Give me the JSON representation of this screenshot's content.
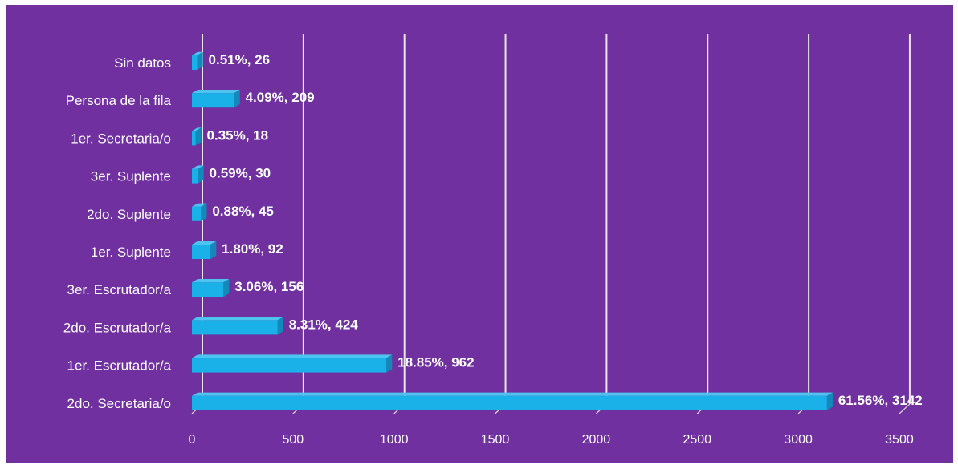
{
  "chart_data": {
    "type": "bar",
    "orientation": "horizontal",
    "style": "3d-clustered-bar",
    "title": "",
    "xlabel": "",
    "ylabel": "",
    "xlim": [
      0,
      3500
    ],
    "x_ticks": [
      0,
      500,
      1000,
      1500,
      2000,
      2500,
      3000,
      3500
    ],
    "grid": "vertical major gridlines",
    "legend": "none",
    "categories": [
      "Sin datos",
      "Persona de la fila",
      "1er. Secretaria/o",
      "3er. Suplente",
      "2do. Suplente",
      "1er. Suplente",
      "3er. Escrutador/a",
      "2do. Escrutador/a",
      "1er. Escrutador/a",
      "2do. Secretaria/o"
    ],
    "values": [
      26,
      209,
      18,
      30,
      45,
      92,
      156,
      424,
      962,
      3142
    ],
    "data_labels": [
      "0.51%, 26",
      "4.09%, 209",
      "0.35%, 18",
      "0.59%, 30",
      "0.88%, 45",
      "1.80%, 92",
      "3.06%, 156",
      "8.31%, 424",
      "18.85%, 962",
      "61.56%, 3142"
    ],
    "colors": {
      "background": "#7030a0",
      "bar_front": "#1ab0e8",
      "bar_top": "#4ec3ef",
      "bar_side": "#1289b8",
      "text": "#ffffff",
      "grid": "#e6e6e6"
    }
  }
}
